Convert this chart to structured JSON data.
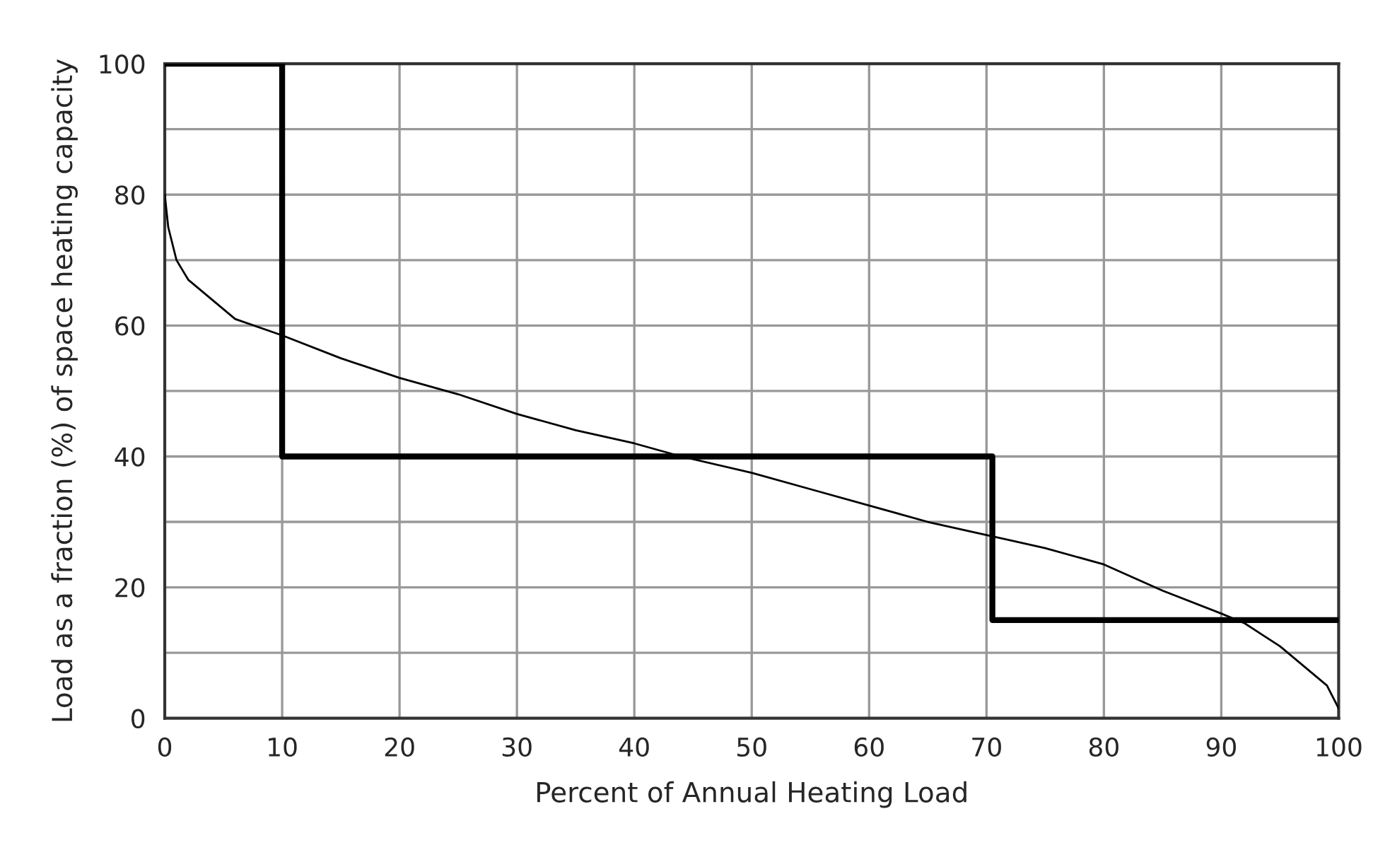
{
  "chart_data": {
    "type": "line",
    "xlabel": "Percent of Annual Heating Load",
    "ylabel": "Load as a fraction (%) of space heating capacity",
    "xlim": [
      0,
      100
    ],
    "xticks": [
      0,
      10,
      20,
      30,
      40,
      50,
      60,
      70,
      80,
      90,
      100
    ],
    "ylim": [
      0,
      100
    ],
    "yticks": [
      0,
      {
        "value": 10,
        "label": null
      },
      20,
      {
        "value": 30,
        "label": null
      },
      40,
      {
        "value": 50,
        "label": null
      },
      60,
      {
        "value": 70,
        "label": null
      },
      80,
      {
        "value": 90,
        "label": null
      },
      100
    ],
    "grid": true,
    "legend": false,
    "series": [
      {
        "color": "#000000",
        "x": [
          0,
          0.3,
          1,
          2,
          4,
          6,
          10,
          15,
          20,
          25,
          30,
          35,
          40,
          44,
          50,
          55,
          60,
          65,
          70,
          75,
          80,
          85,
          90,
          92,
          95,
          97,
          99,
          100
        ],
        "values": [
          80,
          75,
          70,
          67,
          64,
          61,
          58.5,
          55,
          52,
          49.5,
          46.5,
          44,
          42,
          40,
          37.5,
          35,
          32.5,
          30,
          28,
          26,
          23.5,
          19.5,
          16,
          14.5,
          11,
          8,
          5,
          1.5
        ]
      },
      {
        "type": "step",
        "color": "#000000",
        "x": [
          0,
          10,
          70.5,
          100
        ],
        "values": [
          100,
          40,
          15,
          15
        ]
      }
    ]
  }
}
